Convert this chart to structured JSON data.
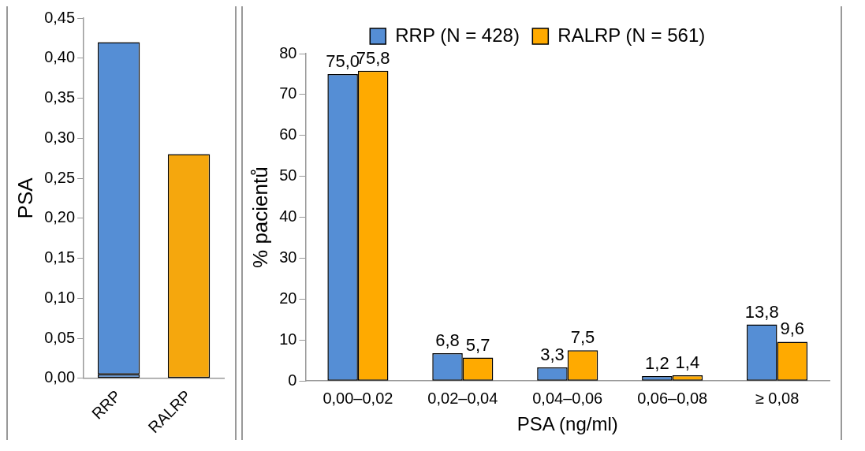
{
  "chart_data": [
    {
      "type": "bar",
      "ylabel": "PSA",
      "categories": [
        "RRP",
        "RALRP"
      ],
      "stacked": true,
      "series": [
        {
          "color": "#558ed5",
          "values": [
            0.005,
            null
          ]
        },
        {
          "colors": [
            "#558ed5",
            "#f5a70d"
          ],
          "values": [
            0.415,
            0.28
          ]
        }
      ],
      "ylim": [
        0,
        0.45
      ],
      "yticks": [
        {
          "value": 0,
          "label": "0,00"
        },
        {
          "value": 0.05,
          "label": "0,05"
        },
        {
          "value": 0.1,
          "label": "0,10"
        },
        {
          "value": 0.15,
          "label": "0,15"
        },
        {
          "value": 0.2,
          "label": "0,20"
        },
        {
          "value": 0.25,
          "label": "0,25"
        },
        {
          "value": 0.3,
          "label": "0,30"
        },
        {
          "value": 0.35,
          "label": "0,35"
        },
        {
          "value": 0.4,
          "label": "0,40"
        },
        {
          "value": 0.45,
          "label": "0,45"
        }
      ]
    },
    {
      "type": "bar",
      "xlabel": "PSA (ng/ml)",
      "ylabel": "% pacientů",
      "categories": [
        "0,00–0,02",
        "0,02–0,04",
        "0,04–0,06",
        "0,06–0,08",
        "≥ 0,08"
      ],
      "legend": "top",
      "series": [
        {
          "name": "RRP (N = 428)",
          "color": "#558ed5",
          "values": [
            75.0,
            6.8,
            3.3,
            1.2,
            13.8
          ],
          "value_labels": [
            "75,0",
            "6,8",
            "3,3",
            "1,2",
            "13,8"
          ]
        },
        {
          "name": "RALRP (N = 561)",
          "color": "#ffaa00",
          "values": [
            75.8,
            5.7,
            7.5,
            1.4,
            9.6
          ],
          "value_labels": [
            "75,8",
            "5,7",
            "7,5",
            "1,4",
            "9,6"
          ]
        }
      ],
      "ylim": [
        0,
        80
      ],
      "yticks": [
        0,
        10,
        20,
        30,
        40,
        50,
        60,
        70,
        80
      ]
    }
  ]
}
